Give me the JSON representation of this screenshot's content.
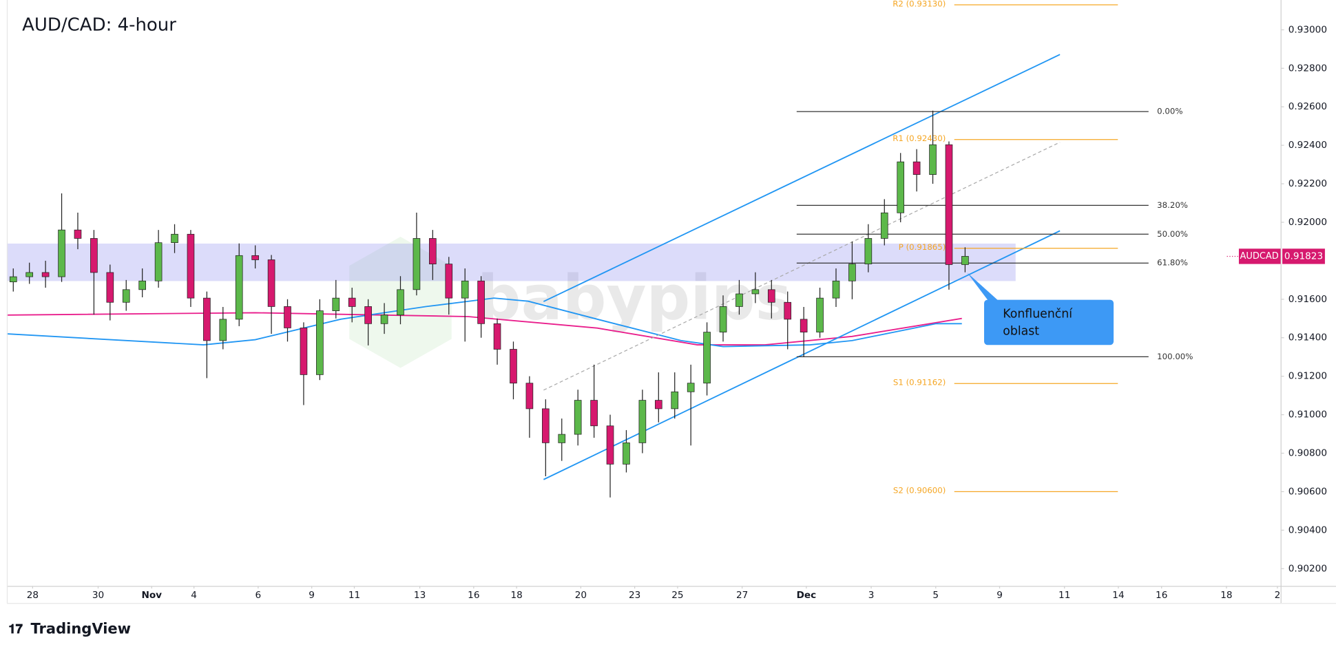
{
  "chart_data": {
    "type": "candlestick",
    "title": "AUD/CAD: 4-hour",
    "x": [
      -0.6,
      -0.1,
      0.4,
      0.9,
      1.4,
      1.9,
      2.4,
      2.9,
      3.4,
      3.9,
      4.4,
      4.9,
      5.4,
      5.9,
      6.4,
      6.9,
      7.4,
      7.9,
      8.4,
      8.9,
      9.4,
      9.9,
      10.4,
      10.9,
      11.4,
      11.9,
      12.4,
      12.9,
      13.4,
      13.9,
      14.4,
      14.9,
      15.4,
      15.9,
      16.4,
      16.9,
      17.4,
      17.9,
      18.4,
      18.9,
      19.4,
      19.9,
      20.4,
      20.9,
      21.4,
      21.9,
      22.4,
      22.9,
      23.4,
      23.9,
      24.4,
      24.9,
      25.4,
      25.9,
      26.4,
      26.9,
      27.4,
      27.9,
      28.4,
      28.9
    ],
    "open": [
      0.9169,
      0.91717,
      0.91739,
      0.91717,
      0.9196,
      0.91916,
      0.91739,
      0.91584,
      0.9165,
      0.91695,
      0.91894,
      0.91938,
      0.91606,
      0.91385,
      0.91496,
      0.91827,
      0.91805,
      0.91562,
      0.91451,
      0.91208,
      0.9154,
      0.91606,
      0.91562,
      0.91473,
      0.91518,
      0.9165,
      0.91916,
      0.91783,
      0.91606,
      0.91695,
      0.91473,
      0.9134,
      0.91164,
      0.91031,
      0.90854,
      0.90898,
      0.91075,
      0.90942,
      0.90743,
      0.90854,
      0.91075,
      0.91031,
      0.91119,
      0.91164,
      0.91429,
      0.91562,
      0.91628,
      0.9165,
      0.91584,
      0.91496,
      0.91429,
      0.91606,
      0.91695,
      0.91783,
      0.91916,
      0.92049,
      0.92314,
      0.92248,
      0.92403,
      0.9178
    ],
    "high": [
      0.9176,
      0.9179,
      0.918,
      0.9215,
      0.9205,
      0.9196,
      0.9178,
      0.917,
      0.9176,
      0.9196,
      0.9199,
      0.9196,
      0.9164,
      0.9156,
      0.9189,
      0.9188,
      0.9183,
      0.916,
      0.9148,
      0.916,
      0.917,
      0.9166,
      0.916,
      0.9158,
      0.9172,
      0.9205,
      0.9196,
      0.9182,
      0.9176,
      0.9172,
      0.915,
      0.9138,
      0.912,
      0.9108,
      0.9098,
      0.9113,
      0.9126,
      0.91,
      0.9092,
      0.9113,
      0.9122,
      0.9122,
      0.9126,
      0.9148,
      0.9162,
      0.917,
      0.9174,
      0.917,
      0.9164,
      0.9156,
      0.9166,
      0.9176,
      0.919,
      0.9199,
      0.9212,
      0.9236,
      0.9238,
      0.9258,
      0.9242,
      0.9187
    ],
    "low": [
      0.9164,
      0.9168,
      0.9166,
      0.9169,
      0.9186,
      0.9152,
      0.9149,
      0.9154,
      0.9161,
      0.9166,
      0.9184,
      0.9156,
      0.9119,
      0.9134,
      0.9146,
      0.9176,
      0.9142,
      0.9138,
      0.9105,
      0.9118,
      0.915,
      0.9148,
      0.9136,
      0.9142,
      0.9147,
      0.9162,
      0.917,
      0.9152,
      0.9138,
      0.914,
      0.9126,
      0.9108,
      0.9088,
      0.9068,
      0.9076,
      0.9084,
      0.9088,
      0.9057,
      0.907,
      0.908,
      0.9096,
      0.9098,
      0.9084,
      0.911,
      0.9138,
      0.9152,
      0.9158,
      0.915,
      0.9134,
      0.913,
      0.914,
      0.9156,
      0.916,
      0.9174,
      0.9188,
      0.92,
      0.9216,
      0.922,
      0.9165,
      0.9174
    ],
    "close": [
      0.91717,
      0.91739,
      0.91717,
      0.9196,
      0.91916,
      0.91739,
      0.91584,
      0.9165,
      0.91695,
      0.91894,
      0.91938,
      0.91606,
      0.91385,
      0.91496,
      0.91827,
      0.91805,
      0.91562,
      0.91451,
      0.91208,
      0.9154,
      0.91606,
      0.91562,
      0.91473,
      0.91518,
      0.9165,
      0.91916,
      0.91783,
      0.91606,
      0.91695,
      0.91473,
      0.9134,
      0.91164,
      0.91031,
      0.90854,
      0.90898,
      0.91075,
      0.90942,
      0.90743,
      0.90854,
      0.91075,
      0.91031,
      0.91119,
      0.91164,
      0.91429,
      0.91562,
      0.91628,
      0.9165,
      0.91584,
      0.91496,
      0.91429,
      0.91606,
      0.91695,
      0.91783,
      0.91916,
      0.92049,
      0.92314,
      0.92248,
      0.92403,
      0.9178,
      0.91823
    ],
    "up_color": "#5cb84a",
    "down_color": "#d6196e",
    "xlim": [
      -0.8,
      38.6
    ],
    "xticks": [
      {
        "value": 0,
        "label": "28"
      },
      {
        "value": 2.03,
        "label": "30"
      },
      {
        "value": 3.69,
        "label": "Nov"
      },
      {
        "value": 5,
        "label": "4"
      },
      {
        "value": 6.99,
        "label": "6"
      },
      {
        "value": 8.65,
        "label": "9"
      },
      {
        "value": 9.97,
        "label": "11"
      },
      {
        "value": 12.0,
        "label": "13"
      },
      {
        "value": 13.67,
        "label": "16"
      },
      {
        "value": 15.0,
        "label": "18"
      },
      {
        "value": 16.99,
        "label": "20"
      },
      {
        "value": 18.66,
        "label": "23"
      },
      {
        "value": 19.99,
        "label": "25"
      },
      {
        "value": 21.99,
        "label": "27"
      },
      {
        "value": 23.98,
        "label": "Dec"
      },
      {
        "value": 25.99,
        "label": "3"
      },
      {
        "value": 27.99,
        "label": "5"
      },
      {
        "value": 29.97,
        "label": "9"
      },
      {
        "value": 31.98,
        "label": "11"
      },
      {
        "value": 33.65,
        "label": "14"
      },
      {
        "value": 34.99,
        "label": "16"
      },
      {
        "value": 37.0,
        "label": "18"
      },
      {
        "value": 38.58,
        "label": "2"
      }
    ],
    "ylim": [
      0.9011,
      0.93155
    ],
    "yticks": [
      {
        "value": 0.93,
        "label": "0.93000"
      },
      {
        "value": 0.928,
        "label": "0.92800"
      },
      {
        "value": 0.926,
        "label": "0.92600"
      },
      {
        "value": 0.924,
        "label": "0.92400"
      },
      {
        "value": 0.922,
        "label": "0.92200"
      },
      {
        "value": 0.92,
        "label": "0.92000"
      },
      {
        "value": 0.916,
        "label": "0.91600"
      },
      {
        "value": 0.914,
        "label": "0.91400"
      },
      {
        "value": 0.912,
        "label": "0.91200"
      },
      {
        "value": 0.91,
        "label": "0.91000"
      },
      {
        "value": 0.908,
        "label": "0.90800"
      },
      {
        "value": 0.906,
        "label": "0.90600"
      },
      {
        "value": 0.904,
        "label": "0.90400"
      },
      {
        "value": 0.902,
        "label": "0.90200"
      }
    ],
    "moving_averages": [
      {
        "color": "#e91e8c",
        "x": [
          -0.8,
          6.9,
          13.5,
          17.5,
          20.6,
          22.7,
          25.4,
          28.8
        ],
        "values": [
          0.91518,
          0.9153,
          0.9151,
          0.9145,
          0.91363,
          0.91363,
          0.91407,
          0.915
        ]
      },
      {
        "color": "#2196f3",
        "x": [
          -0.8,
          5.3,
          6.9,
          9.55,
          12.2,
          14.3,
          15.35,
          17.5,
          20.1,
          21.4,
          24.1,
          25.4,
          28.0,
          28.8
        ],
        "values": [
          0.9142,
          0.91363,
          0.9139,
          0.91496,
          0.91562,
          0.91606,
          0.9159,
          0.91496,
          0.91385,
          0.91354,
          0.91363,
          0.91385,
          0.91473,
          0.91473
        ]
      }
    ],
    "fibonacci": [
      {
        "label": "0.00%",
        "value": 0.92575
      },
      {
        "label": "38.20%",
        "value": 0.92088
      },
      {
        "label": "50.00%",
        "value": 0.91938
      },
      {
        "label": "61.80%",
        "value": 0.91788
      },
      {
        "label": "100.00%",
        "value": 0.91301
      }
    ],
    "pivots": [
      {
        "label": "R2 (0.93130)",
        "value": 0.9313
      },
      {
        "label": "R1 (0.92430)",
        "value": 0.9243
      },
      {
        "label": "P (0.91865)",
        "value": 0.91865
      },
      {
        "label": "S1 (0.91162)",
        "value": 0.91162
      },
      {
        "label": "S2 (0.90600)",
        "value": 0.906
      }
    ],
    "symbol": "AUDCAD",
    "annotation": [
      "Konfluenční",
      "oblast"
    ],
    "watermark": "babypips"
  },
  "brand": "TradingView"
}
